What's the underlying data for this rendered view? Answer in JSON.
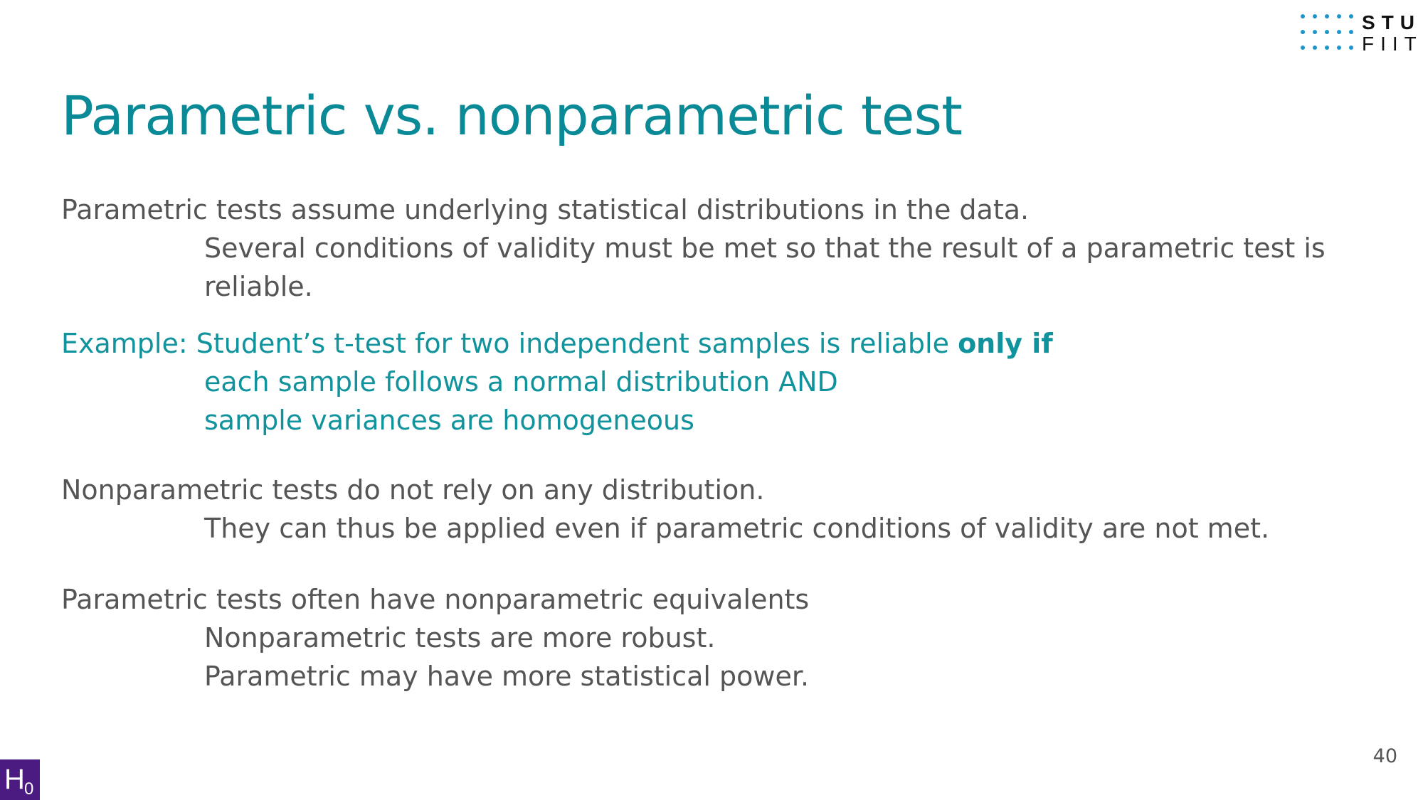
{
  "logo": {
    "line1": "STU",
    "line2": "FIIT",
    "dot_color": "#1f95c9"
  },
  "title": "Parametric vs. nonparametric test",
  "accent_color": "#11939d",
  "content": {
    "p1": {
      "main": "Parametric tests assume underlying statistical distributions in the data.",
      "sub1": "Several conditions of validity must be met so that the result of a parametric test is",
      "sub2": "reliable."
    },
    "example": {
      "main": "Example: Student’s t-test for two independent samples is reliable ",
      "emphasis": "only if",
      "sub1": "each sample follows a normal distribution AND",
      "sub2": "sample variances are homogeneous"
    },
    "p2": {
      "main": "Nonparametric tests do not rely on any distribution.",
      "sub1": "They can thus be applied even if parametric conditions of validity are not met."
    },
    "p3": {
      "main": "Parametric tests often have nonparametric equivalents",
      "sub1": "Nonparametric tests are more robust.",
      "sub2": "Parametric may have more statistical power."
    }
  },
  "page_number": "40",
  "badge": {
    "letter": "H",
    "subscript": "0",
    "color": "#4b1b82"
  }
}
